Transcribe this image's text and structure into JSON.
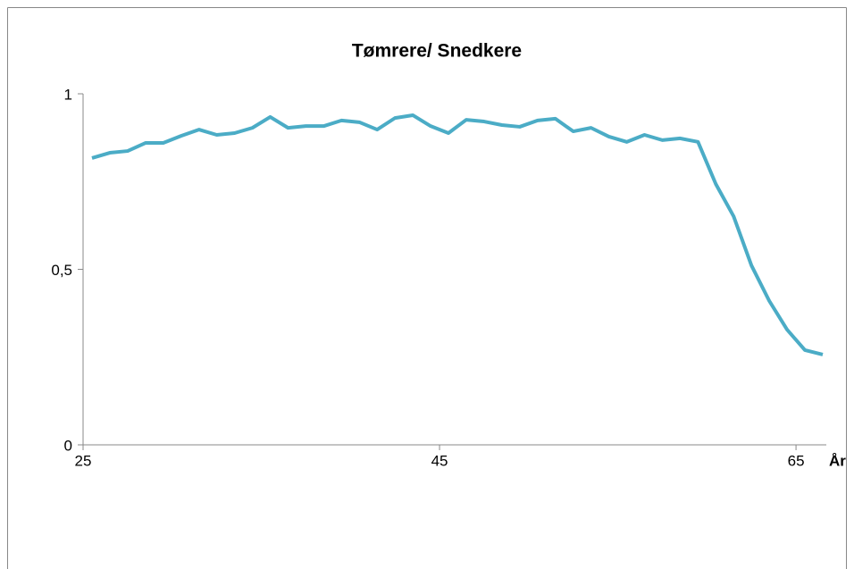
{
  "chart_data": {
    "type": "line",
    "title": "Tømrere/ Snedkere",
    "x_label": "År",
    "x": [
      25.5,
      26.5,
      27.5,
      28.5,
      29.5,
      30.5,
      31.5,
      32.5,
      33.5,
      34.5,
      35.5,
      36.5,
      37.5,
      38.5,
      39.5,
      40.5,
      41.5,
      42.5,
      43.5,
      44.5,
      45.5,
      46.5,
      47.5,
      48.5,
      49.5,
      50.5,
      51.5,
      52.5,
      53.5,
      54.5,
      55.5,
      56.5,
      57.5,
      58.5,
      59.5,
      60.5,
      61.5,
      62.5,
      63.5,
      64.5,
      65.5,
      66.5
    ],
    "series": [
      {
        "name": "Tømrere/ Snedkere",
        "color": "#4bacc6",
        "values": [
          0.817,
          0.832,
          0.837,
          0.86,
          0.86,
          0.88,
          0.898,
          0.883,
          0.888,
          0.903,
          0.934,
          0.903,
          0.908,
          0.908,
          0.924,
          0.919,
          0.898,
          0.931,
          0.939,
          0.908,
          0.888,
          0.926,
          0.921,
          0.911,
          0.906,
          0.924,
          0.929,
          0.893,
          0.903,
          0.878,
          0.863,
          0.883,
          0.868,
          0.873,
          0.863,
          0.743,
          0.651,
          0.511,
          0.41,
          0.328,
          0.27,
          0.257
        ]
      }
    ],
    "xlim": [
      25,
      66.7
    ],
    "xticks": [
      25,
      45,
      65
    ],
    "ylim": [
      0,
      1
    ],
    "yticks": [
      0,
      {
        "value": 0.5,
        "label": "0,5"
      },
      1
    ]
  }
}
